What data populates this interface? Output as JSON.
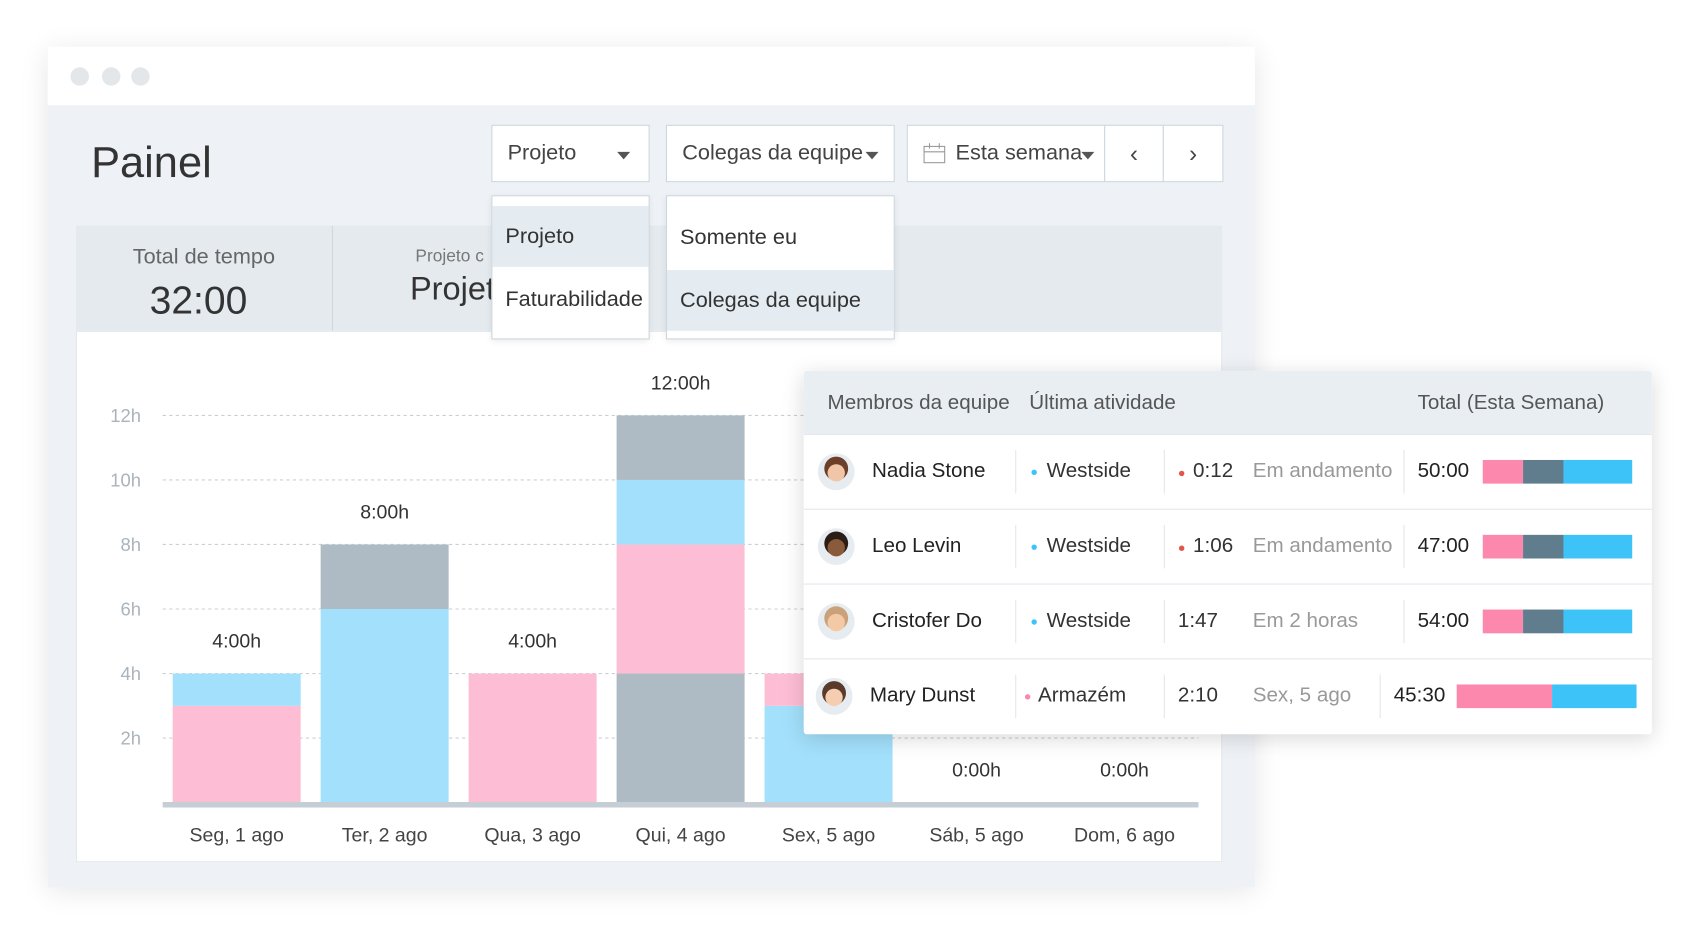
{
  "window": {
    "title": "Painel"
  },
  "filters": {
    "project": "Projeto",
    "team": "Colegas da equipe",
    "range": "Esta semana"
  },
  "menus": {
    "project": [
      "Projeto",
      "Faturabilidade"
    ],
    "team": [
      "Somente eu",
      "Colegas da equipe"
    ]
  },
  "summary": {
    "label": "Total de tempo",
    "value": "32:00",
    "label2": "Projeto c",
    "value2": "Projet"
  },
  "chart_data": {
    "type": "bar",
    "stacked": true,
    "categories": [
      "Seg, 1 ago",
      "Ter, 2 ago",
      "Qua, 3 ago",
      "Qui, 4 ago",
      "Sex, 5 ago",
      "Sáb, 5 ago",
      "Dom, 6 ago"
    ],
    "series": [
      {
        "color": "#aebbc4",
        "values": [
          0,
          0,
          0,
          4,
          0,
          0,
          0
        ]
      },
      {
        "color": "#a3e0fb",
        "values": [
          0,
          0,
          0,
          0,
          3,
          0,
          0
        ]
      },
      {
        "color": "#fdbdd4",
        "values": [
          3,
          0,
          4,
          4,
          1,
          0,
          0
        ]
      },
      {
        "color": "#a3e0fb",
        "values": [
          1,
          6,
          0,
          2,
          0,
          0,
          0
        ]
      },
      {
        "color": "#aebbc4",
        "values": [
          0,
          2,
          0,
          2,
          0,
          0,
          0
        ]
      }
    ],
    "total_labels": [
      "4:00h",
      "8:00h",
      "4:00h",
      "12:00h",
      null,
      "0:00h",
      "0:00h"
    ],
    "ylim": [
      0,
      12
    ],
    "yticks": [
      {
        "value": 2,
        "label": "2h"
      },
      {
        "value": 4,
        "label": "4h"
      },
      {
        "value": 6,
        "label": "6h"
      },
      {
        "value": 8,
        "label": "8h"
      },
      {
        "value": 10,
        "label": "10h"
      },
      {
        "value": 12,
        "label": "12h"
      }
    ],
    "grid": true
  },
  "table": {
    "headers": [
      "Membros da equipe",
      "Última atividade",
      "Total (Esta Semana)"
    ],
    "segment_colors": [
      "#fc88ad",
      "#5f7d8c",
      "#3ec3f8"
    ],
    "rows": [
      {
        "name": "Nadia Stone",
        "project": "Westside",
        "project_color": "#3ec3f8",
        "time": "0:12",
        "time_dot": true,
        "status": "Em andamento",
        "total": "50:00",
        "segments": [
          27,
          27,
          46
        ]
      },
      {
        "name": "Leo Levin",
        "project": "Westside",
        "project_color": "#3ec3f8",
        "time": "1:06",
        "time_dot": true,
        "status": "Em andamento",
        "total": "47:00",
        "segments": [
          27,
          27,
          46
        ]
      },
      {
        "name": "Cristofer Do",
        "project": "Westside",
        "project_color": "#3ec3f8",
        "time": "1:47",
        "time_dot": false,
        "status": "Em 2 horas",
        "total": "54:00",
        "segments": [
          27,
          27,
          46
        ]
      },
      {
        "name": "Mary Dunst",
        "project": "Armazém",
        "project_color": "#fc88ad",
        "time": "2:10",
        "time_dot": false,
        "status": "Sex, 5 ago",
        "total": "45:30",
        "segments": [
          53,
          0,
          47
        ]
      }
    ]
  }
}
